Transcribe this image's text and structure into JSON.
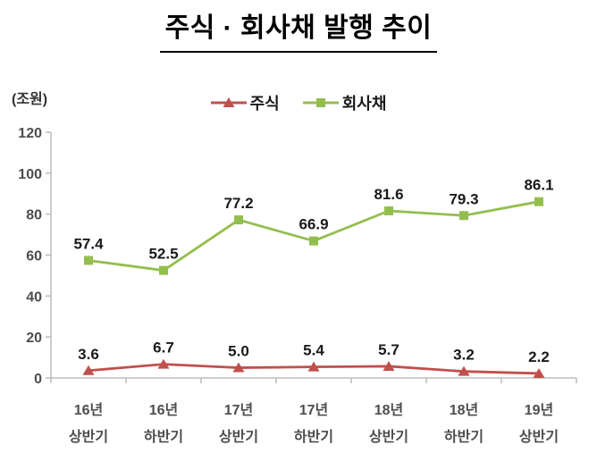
{
  "title": "주식 · 회사채 발행 추이",
  "chart_data": {
    "type": "line",
    "title": "주식 · 회사채 발행 추이",
    "unit_label": "(조원)",
    "categories": [
      [
        "16년",
        "상반기"
      ],
      [
        "16년",
        "하반기"
      ],
      [
        "17년",
        "상반기"
      ],
      [
        "17년",
        "하반기"
      ],
      [
        "18년",
        "상반기"
      ],
      [
        "18년",
        "하반기"
      ],
      [
        "19년",
        "상반기"
      ]
    ],
    "series": [
      {
        "name": "주식",
        "color": "#C0504D",
        "marker": "triangle",
        "values": [
          3.6,
          6.7,
          5.0,
          5.4,
          5.7,
          3.2,
          2.2
        ]
      },
      {
        "name": "회사채",
        "color": "#93BE4E",
        "marker": "square",
        "values": [
          57.4,
          52.5,
          77.2,
          66.9,
          81.6,
          79.3,
          86.1
        ]
      }
    ],
    "ylim": [
      0,
      120
    ],
    "ytick_step": 20,
    "yticks": [
      0,
      20,
      40,
      60,
      80,
      100,
      120
    ],
    "grid": false,
    "legend_position": "top",
    "axis_color": "#BFBFBF",
    "tick_label_color": "#4d4d4d",
    "data_label_color": "#1a1a1a"
  }
}
